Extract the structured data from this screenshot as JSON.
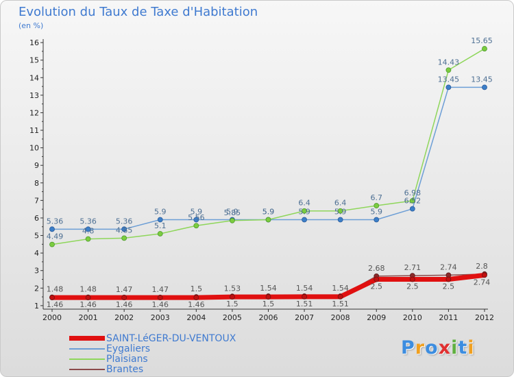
{
  "header": {
    "title": "Evolution du Taux de Taxe d'Habitation",
    "subtitle": "(en %)"
  },
  "logo": {
    "letters": [
      "P",
      "r",
      "o",
      "x",
      "i",
      "t",
      "i"
    ],
    "colors": [
      "#3c8de0",
      "#f0a020",
      "#3c8de0",
      "#e03030",
      "#60b040",
      "#3c8de0",
      "#f0a020"
    ]
  },
  "chart_data": {
    "type": "line",
    "x": [
      "2000",
      "2001",
      "2002",
      "2003",
      "2004",
      "2005",
      "2006",
      "2007",
      "2008",
      "2009",
      "2010",
      "2011",
      "2012"
    ],
    "ylim": [
      0.8,
      16.2
    ],
    "yticks": [
      1,
      2,
      3,
      4,
      5,
      6,
      7,
      8,
      9,
      10,
      11,
      12,
      13,
      14,
      15,
      16
    ],
    "legend_position": "bottom-left",
    "series": [
      {
        "name": "Brantes",
        "color": "#8b4a4a",
        "values": [
          1.48,
          1.48,
          1.47,
          1.47,
          1.5,
          1.53,
          1.54,
          1.54,
          1.54,
          2.68,
          2.71,
          2.74,
          2.8
        ],
        "labels": [
          "1.48",
          "1.48",
          "1.47",
          "1.47",
          "1.5",
          "1.53",
          "1.54",
          "1.54",
          "1.54",
          "2.68",
          "2.71",
          "2.74",
          "2.8"
        ]
      },
      {
        "name": "SAINT-LéGER-DU-VENTOUX",
        "color": "#e01010",
        "values": [
          1.46,
          1.46,
          1.46,
          1.46,
          1.46,
          1.5,
          1.5,
          1.51,
          1.51,
          2.5,
          2.5,
          2.5,
          2.74
        ],
        "labels": [
          "1.46",
          "1.46",
          "1.46",
          "1.46",
          "1.46",
          "1.5",
          "1.5",
          "1.51",
          "1.51",
          "2.5",
          "2.5",
          "2.5",
          "2.74"
        ]
      },
      {
        "name": "Eygaliers",
        "color": "#6c9ed6",
        "values": [
          5.36,
          5.36,
          5.36,
          5.9,
          5.9,
          5.9,
          5.9,
          5.9,
          5.9,
          5.9,
          6.52,
          13.45,
          13.45
        ],
        "labels": [
          "5.36",
          "5.36",
          "5.36",
          "5.9",
          "5.9",
          "5.9",
          "5.9",
          "5.9",
          "5.9",
          "5.9",
          "6.52",
          "13.45",
          "13.45"
        ]
      },
      {
        "name": "Plaisians",
        "color": "#8ed65a",
        "values": [
          4.49,
          4.8,
          4.85,
          5.1,
          5.56,
          5.85,
          5.9,
          6.4,
          6.4,
          6.7,
          6.98,
          14.43,
          15.65
        ],
        "labels": [
          "4.49",
          "4.8",
          "4.85",
          "5.1",
          "5.56",
          "5.85",
          "5.9",
          "6.4",
          "6.4",
          "6.7",
          "6.98",
          "14.43",
          "15.65"
        ]
      }
    ],
    "legend_order": [
      "SAINT-LéGER-DU-VENTOUX",
      "Eygaliers",
      "Plaisians",
      "Brantes"
    ]
  }
}
